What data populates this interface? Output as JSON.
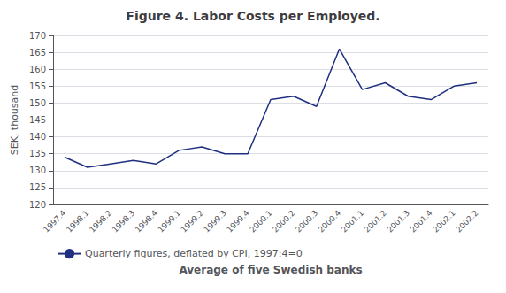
{
  "chart_data": {
    "type": "line",
    "title": "Figure 4. Labor Costs per Employed.",
    "xlabel": "Average of five Swedish banks",
    "ylabel": "SEK, thousand",
    "categories": [
      "1997.4",
      "1998.1",
      "1998.2",
      "1998.3",
      "1998.4",
      "1999.1",
      "1999.2",
      "1999.3",
      "1999.4",
      "2000.1",
      "2000.2",
      "2000.3",
      "2000.4",
      "2001.1",
      "2001.2",
      "2001.3",
      "2001.4",
      "2002.1",
      "2002.2"
    ],
    "series": [
      {
        "name": "Quarterly figures, deflated by CPI, 1997:4=0",
        "color": "#1f3080",
        "values": [
          134,
          131,
          132,
          133,
          132,
          136,
          137,
          135,
          135,
          151,
          152,
          149,
          166,
          154,
          156,
          152,
          151,
          155,
          156
        ]
      }
    ],
    "ylim": [
      120,
      170
    ],
    "yticks": [
      120,
      125,
      130,
      135,
      140,
      145,
      150,
      155,
      160,
      165,
      170
    ],
    "grid": true,
    "legend": "lower left"
  }
}
